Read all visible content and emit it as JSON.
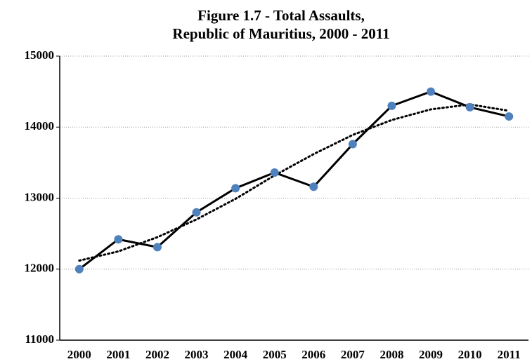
{
  "chart_data": {
    "type": "line",
    "title": [
      "Figure 1.7 - Total Assaults,",
      "Republic of Mauritius, 2000 - 2011"
    ],
    "categories": [
      "2000",
      "2001",
      "2002",
      "2003",
      "2004",
      "2005",
      "2006",
      "2007",
      "2008",
      "2009",
      "2010",
      "2011"
    ],
    "values": [
      12000,
      12420,
      12310,
      12800,
      13140,
      13360,
      13160,
      13760,
      14300,
      14500,
      14280,
      14150
    ],
    "color": "#000000",
    "marker_color": "#4f81bd",
    "trendline": {
      "values": [
        12120,
        12250,
        12450,
        12700,
        12990,
        13320,
        13620,
        13890,
        14100,
        14250,
        14320,
        14230
      ],
      "color": "#000000",
      "style": "dotted"
    },
    "ylim": [
      11000,
      15000
    ],
    "yticks": [
      11000,
      12000,
      13000,
      14000,
      15000
    ],
    "grid": true
  }
}
